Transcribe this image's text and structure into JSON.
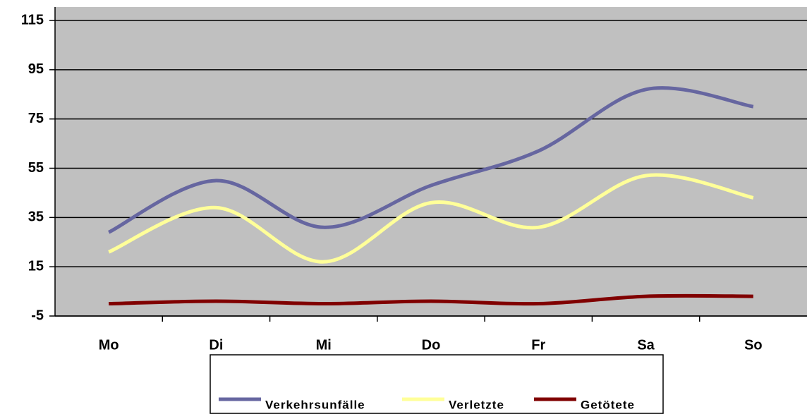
{
  "chart_data": {
    "type": "line",
    "categories": [
      "Mo",
      "Di",
      "Mi",
      "Do",
      "Fr",
      "Sa",
      "So"
    ],
    "series": [
      {
        "name": "Verkehrsunfälle",
        "color": "#6666a0",
        "values": [
          29,
          50,
          31,
          48,
          62,
          87,
          80
        ]
      },
      {
        "name": "Verletzte",
        "color": "#ffff99",
        "values": [
          21,
          39,
          17,
          41,
          31,
          52,
          43
        ]
      },
      {
        "name": "Getötete",
        "color": "#800000",
        "values": [
          0,
          1,
          0,
          1,
          0,
          3,
          3
        ]
      }
    ],
    "ylim": [
      -5,
      115
    ],
    "yticks": [
      -5,
      15,
      35,
      55,
      75,
      95,
      115
    ],
    "grid": true,
    "legend": "bottom",
    "smooth": true
  }
}
